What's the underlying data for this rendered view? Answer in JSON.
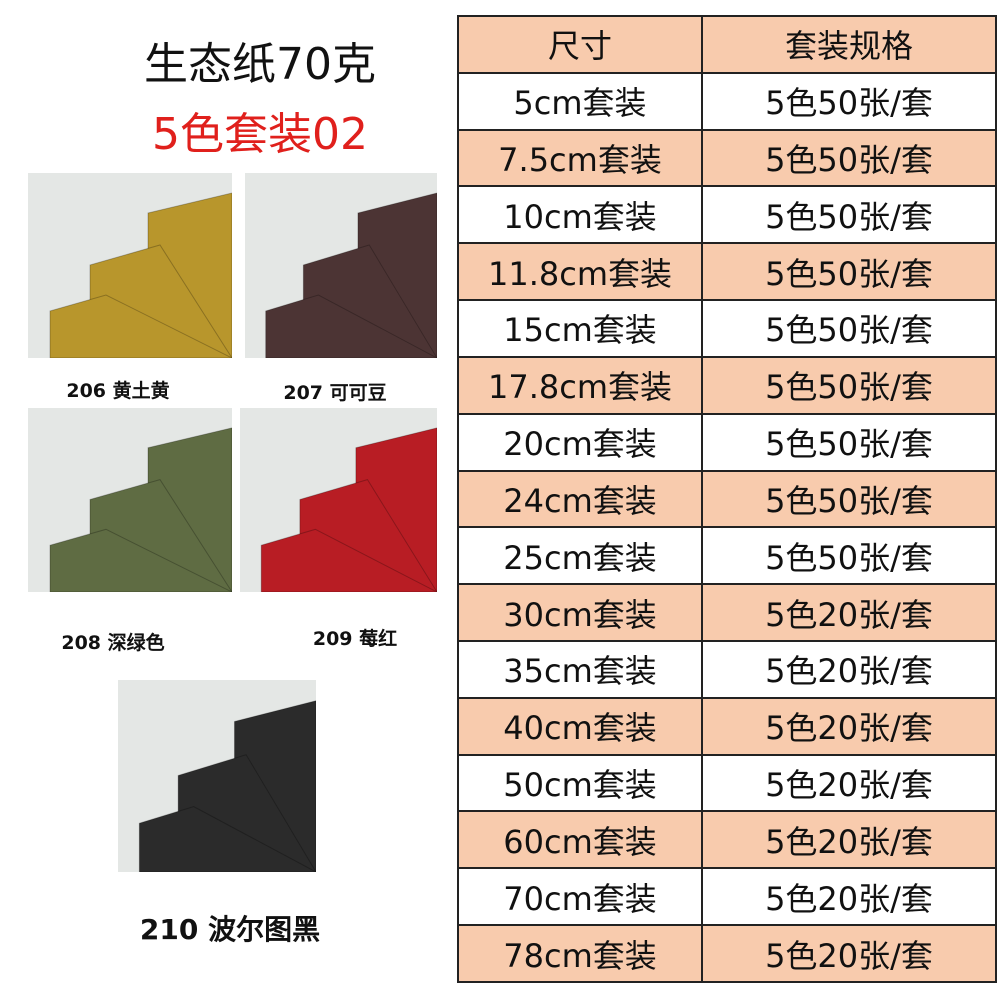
{
  "title": "生态纸70克",
  "subtitle": "5色套装02",
  "swatches": [
    {
      "label": "206 黄土黄"
    },
    {
      "label": "207 可可豆"
    },
    {
      "label": "208 深绿色"
    },
    {
      "label": "209 莓红"
    },
    {
      "label": "210 波尔图黑"
    }
  ],
  "table": {
    "header": [
      "尺寸",
      "套装规格"
    ],
    "rows": [
      [
        "5cm套装",
        "5色50张/套"
      ],
      [
        "7.5cm套装",
        "5色50张/套"
      ],
      [
        "10cm套装",
        "5色50张/套"
      ],
      [
        "11.8cm套装",
        "5色50张/套"
      ],
      [
        "15cm套装",
        "5色50张/套"
      ],
      [
        "17.8cm套装",
        "5色50张/套"
      ],
      [
        "20cm套装",
        "5色50张/套"
      ],
      [
        "24cm套装",
        "5色50张/套"
      ],
      [
        "25cm套装",
        "5色50张/套"
      ],
      [
        "30cm套装",
        "5色20张/套"
      ],
      [
        "35cm套装",
        "5色20张/套"
      ],
      [
        "40cm套装",
        "5色20张/套"
      ],
      [
        "50cm套装",
        "5色20张/套"
      ],
      [
        "60cm套装",
        "5色20张/套"
      ],
      [
        "70cm套装",
        "5色20张/套"
      ],
      [
        "78cm套装",
        "5色20张/套"
      ]
    ]
  }
}
